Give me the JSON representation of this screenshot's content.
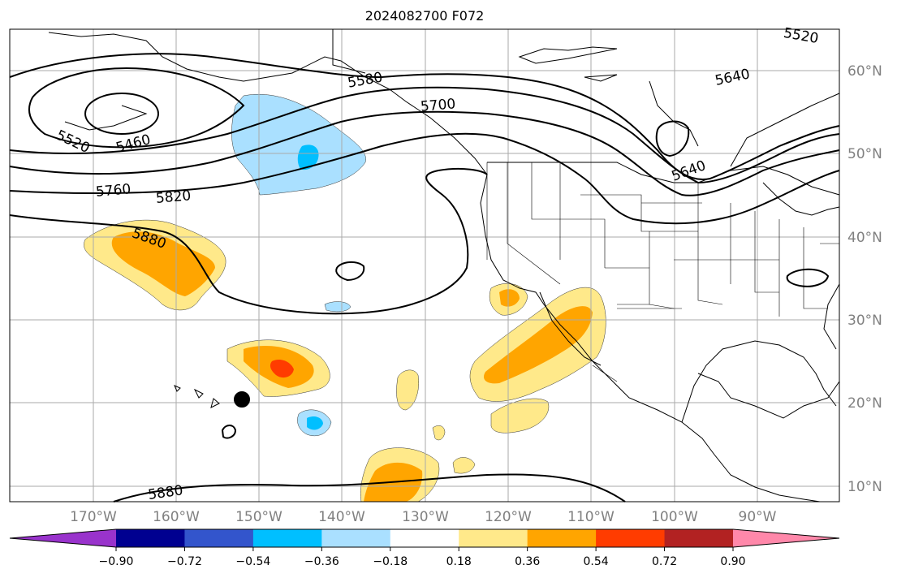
{
  "title": "2024082700 F072",
  "map": {
    "lat_labels": [
      "60°N",
      "50°N",
      "40°N",
      "30°N",
      "20°N",
      "10°N"
    ],
    "lon_labels": [
      "170°W",
      "160°W",
      "150°W",
      "140°W",
      "130°W",
      "120°W",
      "110°W",
      "100°W",
      "90°W"
    ],
    "contour_labels": [
      "5520",
      "5460",
      "5580",
      "5700",
      "5640",
      "5640",
      "5520",
      "5760",
      "5820",
      "5880",
      "5880"
    ]
  },
  "colorbar": {
    "colors": [
      "#9933cc",
      "#000090",
      "#3355cc",
      "#00bfff",
      "#aae0ff",
      "#ffffff",
      "#ffe98a",
      "#ffa500",
      "#ff3c00",
      "#b22222",
      "#ff88aa"
    ],
    "tick_labels": [
      "−0.90",
      "−0.72",
      "−0.54",
      "−0.36",
      "−0.18",
      "0.18",
      "0.36",
      "0.54",
      "0.72",
      "0.90"
    ]
  }
}
